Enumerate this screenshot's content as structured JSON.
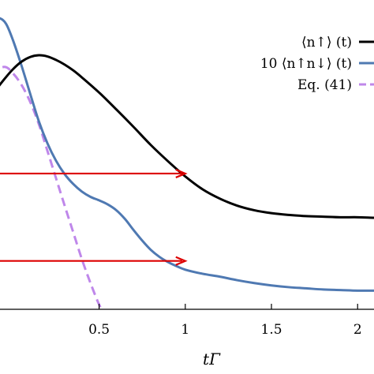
{
  "chart_data": {
    "type": "line",
    "xlabel": "tΓ",
    "ylabel": "",
    "xlim": [
      -0.13,
      2.15
    ],
    "ylim": [
      0,
      0.52
    ],
    "x_ticks": [
      {
        "value": 0.5,
        "label": "0.5"
      },
      {
        "value": 1.0,
        "label": "1"
      },
      {
        "value": 1.5,
        "label": "1.5"
      },
      {
        "value": 2.0,
        "label": "2"
      }
    ],
    "legend_position": "top-right",
    "series": [
      {
        "name": "⟨n↑⟩ (t)",
        "color": "#000000",
        "style": "solid",
        "x": [
          -0.13,
          -0.05,
          0.0,
          0.05,
          0.1,
          0.15,
          0.2,
          0.25,
          0.3,
          0.35,
          0.4,
          0.5,
          0.6,
          0.7,
          0.8,
          0.9,
          1.0,
          1.1,
          1.2,
          1.3,
          1.4,
          1.5,
          1.6,
          1.7,
          1.8,
          1.9,
          2.0,
          2.1,
          2.15
        ],
        "y": [
          0.365,
          0.395,
          0.412,
          0.425,
          0.433,
          0.436,
          0.434,
          0.428,
          0.42,
          0.41,
          0.398,
          0.372,
          0.343,
          0.313,
          0.282,
          0.254,
          0.228,
          0.206,
          0.19,
          0.178,
          0.17,
          0.165,
          0.162,
          0.16,
          0.159,
          0.158,
          0.158,
          0.157,
          0.157
        ]
      },
      {
        "name": "10 ⟨n↑n↓⟩ (t)",
        "color": "#4f79b2",
        "style": "solid",
        "x": [
          -0.13,
          -0.08,
          -0.04,
          0.0,
          0.05,
          0.1,
          0.15,
          0.2,
          0.25,
          0.3,
          0.35,
          0.4,
          0.45,
          0.5,
          0.55,
          0.6,
          0.65,
          0.7,
          0.75,
          0.8,
          0.85,
          0.9,
          0.95,
          1.0,
          1.1,
          1.2,
          1.3,
          1.4,
          1.5,
          1.6,
          1.7,
          1.8,
          1.9,
          2.0,
          2.1,
          2.15
        ],
        "y": [
          0.5,
          0.5,
          0.49,
          0.462,
          0.418,
          0.37,
          0.323,
          0.285,
          0.255,
          0.232,
          0.215,
          0.202,
          0.193,
          0.187,
          0.18,
          0.17,
          0.155,
          0.136,
          0.118,
          0.102,
          0.09,
          0.081,
          0.074,
          0.068,
          0.061,
          0.056,
          0.05,
          0.045,
          0.041,
          0.038,
          0.036,
          0.034,
          0.033,
          0.032,
          0.032,
          0.032
        ]
      },
      {
        "name": "Eq. (41)",
        "color": "#bf87ea",
        "style": "dashed",
        "x": [
          -0.13,
          -0.05,
          0.0,
          0.05,
          0.1,
          0.15,
          0.2,
          0.25,
          0.3,
          0.35,
          0.4,
          0.45,
          0.5,
          0.52
        ],
        "y": [
          0.405,
          0.416,
          0.405,
          0.385,
          0.356,
          0.318,
          0.272,
          0.225,
          0.178,
          0.132,
          0.086,
          0.045,
          0.008,
          0.0
        ]
      }
    ],
    "arrows": [
      {
        "x_from": -0.13,
        "x_to": 1.0,
        "y": 0.233,
        "color": "#dd0000"
      },
      {
        "x_from": -0.13,
        "x_to": 1.0,
        "y": 0.083,
        "color": "#dd0000"
      }
    ]
  }
}
